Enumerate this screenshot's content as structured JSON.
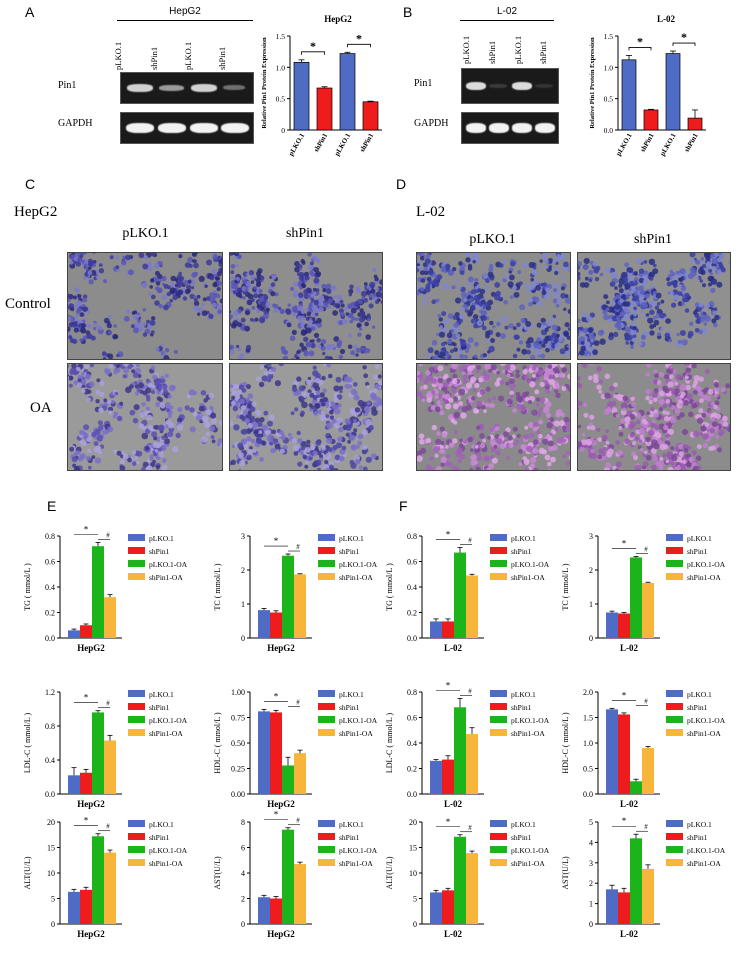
{
  "panel_labels": {
    "A": "A",
    "B": "B",
    "C": "C",
    "D": "D",
    "E": "E",
    "F": "F"
  },
  "blots": [
    {
      "id": "A",
      "cell": "HepG2",
      "lanes": [
        "pLKO.1",
        "shPin1",
        "pLKO.1",
        "shPin1"
      ],
      "rows": [
        "Pin1",
        "GAPDH"
      ],
      "pin1_bands": [
        0.85,
        0.6,
        0.85,
        0.4
      ]
    },
    {
      "id": "B",
      "cell": "L-02",
      "lanes": [
        "pLKO.1",
        "shPin1",
        "pLKO.1",
        "shPin1"
      ],
      "rows": [
        "Pin1",
        "GAPDH"
      ],
      "pin1_bands": [
        0.9,
        0.15,
        0.9,
        0.12
      ]
    }
  ],
  "micro": {
    "C": {
      "cell": "HepG2",
      "cols": [
        "pLKO.1",
        "shPin1"
      ],
      "rows": [
        "Control",
        "OA"
      ]
    },
    "D": {
      "cell": "L-02",
      "cols": [
        "pLKO.1",
        "shPin1"
      ]
    }
  },
  "chart_data": [
    {
      "type": "bar",
      "title": "HepG2",
      "categories": [
        "pLKO.1",
        "shPin1",
        "pLKO.1",
        "shPin1"
      ],
      "values": [
        1.08,
        0.67,
        1.22,
        0.45
      ],
      "errors": [
        0.04,
        0.02,
        0.02,
        0.01
      ],
      "colors": [
        "#4f6cc5",
        "#ee1c1c",
        "#4f6cc5",
        "#ee1c1c"
      ],
      "ylabel": "Relative Pin1 Protein Expression",
      "ylim": [
        0,
        1.5
      ],
      "yticks": [
        0,
        0.5,
        1.0,
        1.5
      ],
      "ytick_labels": [
        "0",
        "0.5",
        "1.0",
        "1.5"
      ],
      "sig": [
        "*",
        "*"
      ]
    },
    {
      "type": "bar",
      "title": "L-02",
      "categories": [
        "pLKO.1",
        "shPin1",
        "pLKO.1",
        "shPin1"
      ],
      "values": [
        1.12,
        0.32,
        1.22,
        0.19
      ],
      "errors": [
        0.07,
        0.01,
        0.04,
        0.13
      ],
      "colors": [
        "#4f6cc5",
        "#ee1c1c",
        "#4f6cc5",
        "#ee1c1c"
      ],
      "ylabel": "Relative Pin1 Protein Expression",
      "ylim": [
        0,
        1.5
      ],
      "yticks": [
        0,
        0.5,
        1.0,
        1.5
      ],
      "ytick_labels": [
        "0.0",
        "0.5",
        "1.0",
        "1.5"
      ],
      "sig": [
        "*",
        "*"
      ]
    },
    {
      "type": "bar",
      "xlabel": "HepG2",
      "ylabel": "TG ( mmol/L )",
      "values": [
        0.06,
        0.1,
        0.72,
        0.32
      ],
      "errors": [
        0.01,
        0.01,
        0.03,
        0.02
      ],
      "ylim": [
        0,
        0.8
      ],
      "yticks": [
        0,
        0.2,
        0.4,
        0.6,
        0.8
      ],
      "ytick_labels": [
        "0.0",
        "0.2",
        "0.4",
        "0.6",
        "0.8"
      ],
      "sig": [
        "*",
        "#"
      ],
      "legend": [
        "pLKO.1",
        "shPin1",
        "pLKO.1-OA",
        "shPin1-OA"
      ]
    },
    {
      "type": "bar",
      "xlabel": "HepG2",
      "ylabel": "TC ( mmol/L )",
      "values": [
        0.82,
        0.75,
        2.42,
        1.87
      ],
      "errors": [
        0.05,
        0.05,
        0.05,
        0.02
      ],
      "ylim": [
        0,
        3
      ],
      "yticks": [
        0,
        1,
        2,
        3
      ],
      "ytick_labels": [
        "0",
        "1",
        "2",
        "3"
      ],
      "sig": [
        "*",
        "#"
      ],
      "legend": [
        "pLKO.1",
        "shPin1",
        "pLKO.1-OA",
        "shPin1-OA"
      ]
    },
    {
      "type": "bar",
      "xlabel": "L-02",
      "ylabel": "TG ( mmol/L )",
      "values": [
        0.13,
        0.13,
        0.67,
        0.49
      ],
      "errors": [
        0.02,
        0.02,
        0.04,
        0.01
      ],
      "ylim": [
        0,
        0.8
      ],
      "yticks": [
        0,
        0.2,
        0.4,
        0.6,
        0.8
      ],
      "ytick_labels": [
        "0.0",
        "0.2",
        "0.4",
        "0.6",
        "0.8"
      ],
      "sig": [
        "*",
        "#"
      ],
      "legend": [
        "pLKO.1",
        "shPin1",
        "pLKO.1-OA",
        "shPin1-OA"
      ]
    },
    {
      "type": "bar",
      "xlabel": "L-02",
      "ylabel": "TC ( mmol/L )",
      "values": [
        0.75,
        0.72,
        2.37,
        1.62
      ],
      "errors": [
        0.04,
        0.03,
        0.03,
        0.02
      ],
      "ylim": [
        0,
        3
      ],
      "yticks": [
        0,
        1,
        2,
        3
      ],
      "ytick_labels": [
        "0",
        "1",
        "2",
        "3"
      ],
      "sig": [
        "*",
        "#"
      ],
      "legend": [
        "pLKO.1",
        "shPin1",
        "pLKO.1-OA",
        "shPin1-OA"
      ]
    },
    {
      "type": "bar",
      "xlabel": "HepG2",
      "ylabel": "LDL-C ( mmol/L )",
      "values": [
        0.22,
        0.25,
        0.96,
        0.63
      ],
      "errors": [
        0.09,
        0.04,
        0.02,
        0.06
      ],
      "ylim": [
        0,
        1.2
      ],
      "yticks": [
        0,
        0.4,
        0.8,
        1.2
      ],
      "ytick_labels": [
        "0.0",
        "0.4",
        "0.8",
        "1.2"
      ],
      "sig": [
        "*",
        "#"
      ],
      "legend": [
        "pLKO.1",
        "shPin1",
        "pLKO.1-OA",
        "shPin1-OA"
      ]
    },
    {
      "type": "bar",
      "xlabel": "HepG2",
      "ylabel": "HDL-C ( mmol/L )",
      "values": [
        0.81,
        0.8,
        0.28,
        0.4
      ],
      "errors": [
        0.02,
        0.02,
        0.08,
        0.03
      ],
      "ylim": [
        0,
        1.0
      ],
      "yticks": [
        0,
        0.25,
        0.5,
        0.75,
        1.0
      ],
      "ytick_labels": [
        "0.00",
        "0.25",
        "0.50",
        "0.75",
        "1.00"
      ],
      "sig": [
        "*",
        "#"
      ],
      "legend": [
        "pLKO.1",
        "shPin1",
        "pLKO.1-OA",
        "shPin1-OA"
      ]
    },
    {
      "type": "bar",
      "xlabel": "L-02",
      "ylabel": "LDL-C ( mmol/L )",
      "values": [
        0.26,
        0.27,
        0.68,
        0.47
      ],
      "errors": [
        0.01,
        0.03,
        0.07,
        0.05
      ],
      "ylim": [
        0,
        0.8
      ],
      "yticks": [
        0,
        0.2,
        0.4,
        0.6,
        0.8
      ],
      "ytick_labels": [
        "0.0",
        "0.2",
        "0.4",
        "0.6",
        "0.8"
      ],
      "sig": [
        "*",
        "#"
      ],
      "legend": [
        "pLKO.1",
        "shPin1",
        "pLKO.1-OA",
        "shPin1-OA"
      ]
    },
    {
      "type": "bar",
      "xlabel": "L-02",
      "ylabel": "HDL-C ( mmol/L )",
      "values": [
        1.66,
        1.56,
        0.25,
        0.9
      ],
      "errors": [
        0.02,
        0.03,
        0.04,
        0.03
      ],
      "ylim": [
        0,
        2.0
      ],
      "yticks": [
        0,
        0.5,
        1.0,
        1.5,
        2.0
      ],
      "ytick_labels": [
        "0.0",
        "0.5",
        "1.0",
        "1.5",
        "2.0"
      ],
      "sig": [
        "*",
        "#"
      ],
      "legend": [
        "pLKO.1",
        "shPin1",
        "pLKO.1-OA",
        "shPin1-OA"
      ]
    },
    {
      "type": "bar",
      "xlabel": "HepG2",
      "ylabel": "ALT(U/L)",
      "values": [
        6.3,
        6.7,
        17.2,
        14.0
      ],
      "errors": [
        0.5,
        0.5,
        0.5,
        0.5
      ],
      "ylim": [
        0,
        20
      ],
      "yticks": [
        0,
        5,
        10,
        15,
        20
      ],
      "ytick_labels": [
        "0",
        "5",
        "10",
        "15",
        "20"
      ],
      "sig": [
        "*",
        "#"
      ],
      "legend": [
        "pLKO.1",
        "shPin1",
        "pLKO.1-OA",
        "shPin1-OA"
      ]
    },
    {
      "type": "bar",
      "xlabel": "HepG2",
      "ylabel": "AST(U/L)",
      "values": [
        2.1,
        2.0,
        7.4,
        4.7
      ],
      "errors": [
        0.15,
        0.15,
        0.15,
        0.15
      ],
      "ylim": [
        0,
        8
      ],
      "yticks": [
        0,
        2,
        4,
        6,
        8
      ],
      "ytick_labels": [
        "0",
        "2",
        "4",
        "6",
        "8"
      ],
      "sig": [
        "*",
        "#"
      ],
      "legend": [
        "pLKO.1",
        "shPin1",
        "pLKO.1-OA",
        "shPin1-OA"
      ]
    },
    {
      "type": "bar",
      "xlabel": "L-02",
      "ylabel": "ALT(U/L)",
      "values": [
        6.2,
        6.6,
        17.1,
        13.9
      ],
      "errors": [
        0.4,
        0.4,
        0.4,
        0.4
      ],
      "ylim": [
        0,
        20
      ],
      "yticks": [
        0,
        5,
        10,
        15,
        20
      ],
      "ytick_labels": [
        "0",
        "5",
        "10",
        "15",
        "20"
      ],
      "sig": [
        "*",
        "#"
      ],
      "legend": [
        "pLKO.1",
        "shPin1",
        "pLKO.1-OA",
        "shPin1-OA"
      ]
    },
    {
      "type": "bar",
      "xlabel": "L-02",
      "ylabel": "AST(U/L)",
      "values": [
        1.7,
        1.55,
        4.2,
        2.7
      ],
      "errors": [
        0.2,
        0.2,
        0.2,
        0.2
      ],
      "ylim": [
        0,
        5
      ],
      "yticks": [
        0,
        1,
        2,
        3,
        4,
        5
      ],
      "ytick_labels": [
        "0",
        "1",
        "2",
        "3",
        "4",
        "5"
      ],
      "sig": [
        "*",
        "#"
      ],
      "legend": [
        "pLKO.1",
        "shPin1",
        "pLKO.1-OA",
        "shPin1-OA"
      ]
    }
  ],
  "colors": {
    "blue": "#4f6cc5",
    "red": "#ee1c1c",
    "green": "#1bb51b",
    "orange": "#f7b53b"
  }
}
